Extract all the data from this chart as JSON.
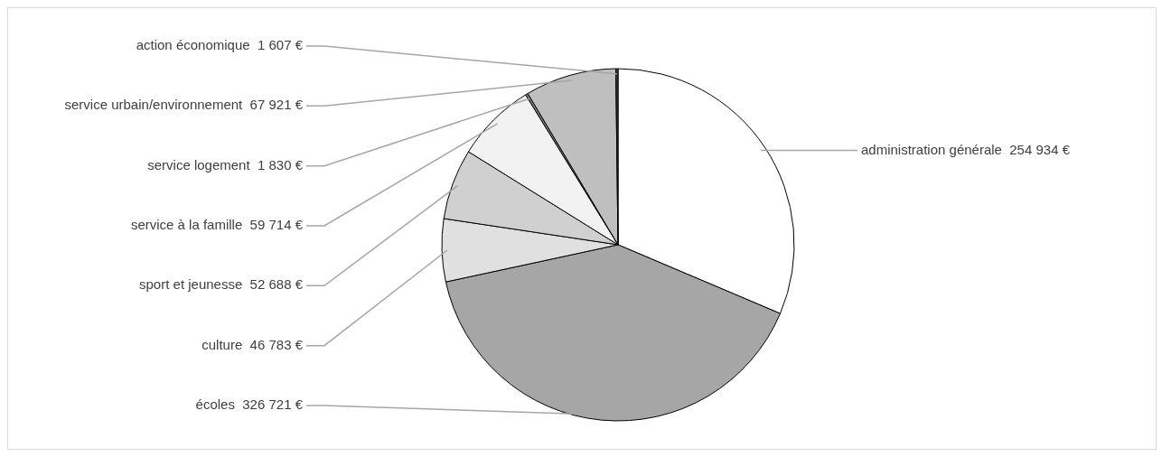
{
  "chart_data": {
    "type": "pie",
    "categories": [
      "administration générale",
      "écoles",
      "culture",
      "sport et jeunesse",
      "service à la famille",
      "service logement",
      "service urbain/environnement",
      "action économique"
    ],
    "values": [
      254934,
      326721,
      46783,
      52688,
      59714,
      1830,
      67921,
      1607
    ],
    "value_labels": [
      "254 934 €",
      "326 721 €",
      "46 783 €",
      "52 688 €",
      "59 714 €",
      "1 830 €",
      "67 921 €",
      "1 607 €"
    ],
    "colors": [
      "#ffffff",
      "#a6a6a6",
      "#e0e0e0",
      "#d0d0d0",
      "#f2f2f2",
      "#808080",
      "#bfbfbf",
      "#404040"
    ],
    "legend": false
  }
}
